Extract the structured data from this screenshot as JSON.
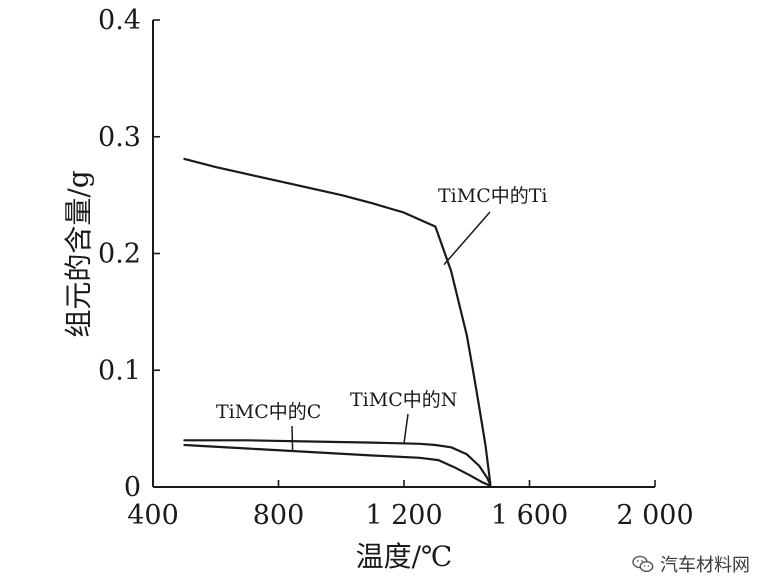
{
  "chart_data": {
    "type": "line",
    "xlabel": "温度/℃",
    "ylabel": "组元的含量/g",
    "xlim": [
      400,
      2000
    ],
    "ylim": [
      0,
      0.4
    ],
    "x_ticks": [
      400,
      800,
      1200,
      1600,
      2000
    ],
    "x_tick_labels": [
      "400",
      "800",
      "1 200",
      "1 600",
      "2 000"
    ],
    "y_ticks": [
      0,
      0.1,
      0.2,
      0.3,
      0.4
    ],
    "y_tick_labels": [
      "0",
      "0.1",
      "0.2",
      "0.3",
      "0.4"
    ],
    "grid": false,
    "series": [
      {
        "name": "TiMC中的Ti",
        "x": [
          500,
          600,
          700,
          800,
          900,
          1000,
          1100,
          1150,
          1200,
          1250,
          1300,
          1350,
          1400,
          1420,
          1440,
          1460,
          1475
        ],
        "y": [
          0.281,
          0.274,
          0.268,
          0.262,
          0.256,
          0.25,
          0.243,
          0.239,
          0.235,
          0.229,
          0.223,
          0.185,
          0.13,
          0.1,
          0.068,
          0.035,
          0.003
        ]
      },
      {
        "name": "TiMC中的N",
        "x": [
          500,
          700,
          900,
          1100,
          1250,
          1300,
          1350,
          1400,
          1440,
          1465,
          1475
        ],
        "y": [
          0.04,
          0.04,
          0.039,
          0.038,
          0.037,
          0.036,
          0.034,
          0.028,
          0.018,
          0.008,
          0.002
        ]
      },
      {
        "name": "TiMC中的C",
        "x": [
          500,
          700,
          900,
          1100,
          1250,
          1310,
          1360,
          1410,
          1450,
          1475
        ],
        "y": [
          0.036,
          0.033,
          0.03,
          0.027,
          0.025,
          0.023,
          0.017,
          0.01,
          0.004,
          0.001
        ]
      }
    ],
    "annotations": [
      {
        "text": "TiMC中的Ti",
        "series": "TiMC中的Ti"
      },
      {
        "text": "TiMC中的C",
        "series": "TiMC中的C"
      },
      {
        "text": "TiMC中的N",
        "series": "TiMC中的N"
      }
    ]
  },
  "watermark": {
    "text": "汽车材料网",
    "icon": "wechat-logo-icon"
  }
}
